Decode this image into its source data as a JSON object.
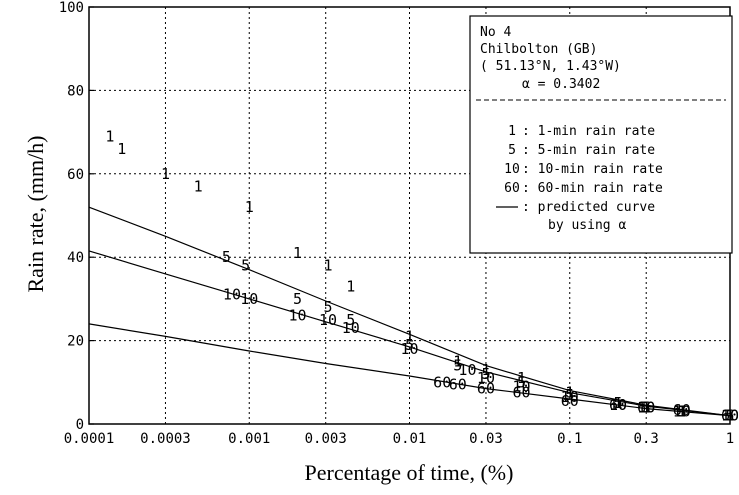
{
  "chart_data": {
    "type": "scatter",
    "xlabel": "Percentage of time, (%)",
    "ylabel": "Rain rate, (mm/h)",
    "xscale": "log",
    "xlim": [
      0.0001,
      1
    ],
    "ylim": [
      0,
      100
    ],
    "x_ticks": [
      {
        "value": 0.0001,
        "label": "0.0001"
      },
      {
        "value": 0.0003,
        "label": "0.0003"
      },
      {
        "value": 0.001,
        "label": "0.001"
      },
      {
        "value": 0.003,
        "label": "0.003"
      },
      {
        "value": 0.01,
        "label": "0.01"
      },
      {
        "value": 0.03,
        "label": "0.03"
      },
      {
        "value": 0.1,
        "label": "0.1"
      },
      {
        "value": 0.3,
        "label": "0.3"
      },
      {
        "value": 1,
        "label": "1"
      }
    ],
    "y_ticks": [
      {
        "value": 0,
        "label": "0"
      },
      {
        "value": 20,
        "label": "20"
      },
      {
        "value": 40,
        "label": "40"
      },
      {
        "value": 60,
        "label": "60"
      },
      {
        "value": 80,
        "label": "80"
      },
      {
        "value": 100,
        "label": "100"
      }
    ],
    "grid": true,
    "legend_position": "top-right",
    "legend": {
      "station_no": "No 4",
      "station_name": "Chilbolton (GB)",
      "coordinates": "( 51.13°N,  1.43°W)",
      "alpha_line": "α =  0.3402",
      "entries": [
        {
          "marker": "1",
          "label": ":  1-min rain rate"
        },
        {
          "marker": "5",
          "label": ":  5-min rain rate"
        },
        {
          "marker": "10",
          "label": ": 10-min rain rate"
        },
        {
          "marker": "60",
          "label": ": 60-min rain rate"
        },
        {
          "marker": "line",
          "label": ": predicted curve"
        },
        {
          "marker": "",
          "label": "by using α"
        }
      ]
    },
    "series": [
      {
        "marker": "1",
        "points": [
          [
            0.000135,
            69
          ],
          [
            0.00016,
            66
          ],
          [
            0.0003,
            60
          ],
          [
            0.00048,
            57
          ],
          [
            0.001,
            52
          ],
          [
            0.002,
            41
          ],
          [
            0.0031,
            38
          ],
          [
            0.0043,
            33
          ],
          [
            0.01,
            21
          ],
          [
            0.02,
            15
          ],
          [
            0.03,
            13
          ],
          [
            0.05,
            11
          ],
          [
            0.1,
            7.5
          ],
          [
            0.2,
            5
          ],
          [
            0.3,
            4
          ],
          [
            0.5,
            3
          ],
          [
            1,
            2
          ]
        ]
      },
      {
        "marker": "5",
        "points": [
          [
            0.00072,
            40
          ],
          [
            0.00095,
            38
          ],
          [
            0.002,
            30
          ],
          [
            0.0031,
            28
          ],
          [
            0.0043,
            25
          ],
          [
            0.01,
            19
          ],
          [
            0.02,
            14
          ],
          [
            0.03,
            12
          ],
          [
            0.05,
            10
          ],
          [
            0.1,
            7
          ],
          [
            0.2,
            5
          ],
          [
            0.3,
            4
          ],
          [
            0.5,
            3
          ],
          [
            1,
            2
          ]
        ]
      },
      {
        "marker": "10",
        "points": [
          [
            0.00078,
            31
          ],
          [
            0.001,
            30
          ],
          [
            0.002,
            26
          ],
          [
            0.0031,
            25
          ],
          [
            0.0043,
            23
          ],
          [
            0.01,
            18
          ],
          [
            0.023,
            13
          ],
          [
            0.03,
            11
          ],
          [
            0.05,
            9
          ],
          [
            0.1,
            6.5
          ],
          [
            0.2,
            4.5
          ],
          [
            0.3,
            4
          ],
          [
            0.5,
            3
          ],
          [
            1,
            2
          ]
        ]
      },
      {
        "marker": "60",
        "points": [
          [
            0.016,
            10
          ],
          [
            0.02,
            9.5
          ],
          [
            0.03,
            8.5
          ],
          [
            0.05,
            7.5
          ],
          [
            0.1,
            5.5
          ],
          [
            0.2,
            4.5
          ],
          [
            0.3,
            4
          ],
          [
            0.5,
            3.3
          ],
          [
            1,
            2
          ]
        ]
      }
    ],
    "predicted_curves": [
      {
        "points": [
          [
            0.0001,
            52
          ],
          [
            0.0003,
            45
          ],
          [
            0.001,
            37
          ],
          [
            0.003,
            29.5
          ],
          [
            0.01,
            21.5
          ],
          [
            0.03,
            14
          ],
          [
            0.1,
            8
          ],
          [
            0.3,
            4.5
          ],
          [
            1,
            2
          ]
        ]
      },
      {
        "points": [
          [
            0.0001,
            41.5
          ],
          [
            0.0003,
            36
          ],
          [
            0.001,
            30
          ],
          [
            0.003,
            24.5
          ],
          [
            0.01,
            18.5
          ],
          [
            0.03,
            12.5
          ],
          [
            0.1,
            7.5
          ],
          [
            0.3,
            4.3
          ],
          [
            1,
            2
          ]
        ]
      },
      {
        "points": [
          [
            0.0001,
            24
          ],
          [
            0.0003,
            21
          ],
          [
            0.001,
            17.5
          ],
          [
            0.003,
            14.5
          ],
          [
            0.01,
            11.5
          ],
          [
            0.03,
            8.5
          ],
          [
            0.1,
            6
          ],
          [
            0.3,
            3.7
          ],
          [
            1,
            2
          ]
        ]
      }
    ]
  }
}
